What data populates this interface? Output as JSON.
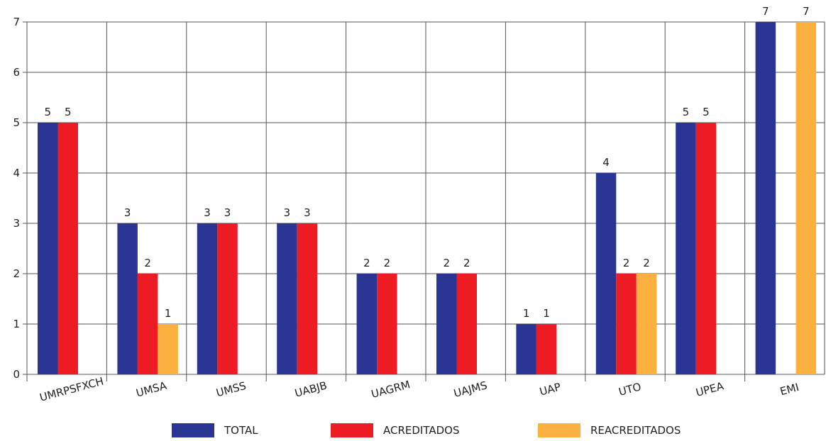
{
  "chart_data": {
    "type": "bar",
    "categories": [
      "UMRPSFXCH",
      "UMSA",
      "UMSS",
      "UABJB",
      "UAGRM",
      "UAJMS",
      "UAP",
      "UTO",
      "UPEA",
      "EMI"
    ],
    "series": [
      {
        "name": "TOTAL",
        "values": [
          5,
          3,
          3,
          3,
          2,
          2,
          1,
          4,
          5,
          7
        ],
        "color": "#2a3593"
      },
      {
        "name": "ACREDITADOS",
        "values": [
          5,
          2,
          3,
          3,
          2,
          2,
          1,
          2,
          5,
          null
        ],
        "color": "#ed1c24"
      },
      {
        "name": "REACREDITADOS",
        "values": [
          null,
          1,
          null,
          null,
          null,
          null,
          null,
          2,
          null,
          7
        ],
        "color": "#fbb040"
      }
    ],
    "yticks": [
      0,
      1,
      2,
      3,
      4,
      5,
      6,
      7
    ],
    "ylim": [
      0,
      7
    ],
    "grid": true,
    "legend_position": "bottom",
    "title": "",
    "xlabel": "",
    "ylabel": ""
  }
}
